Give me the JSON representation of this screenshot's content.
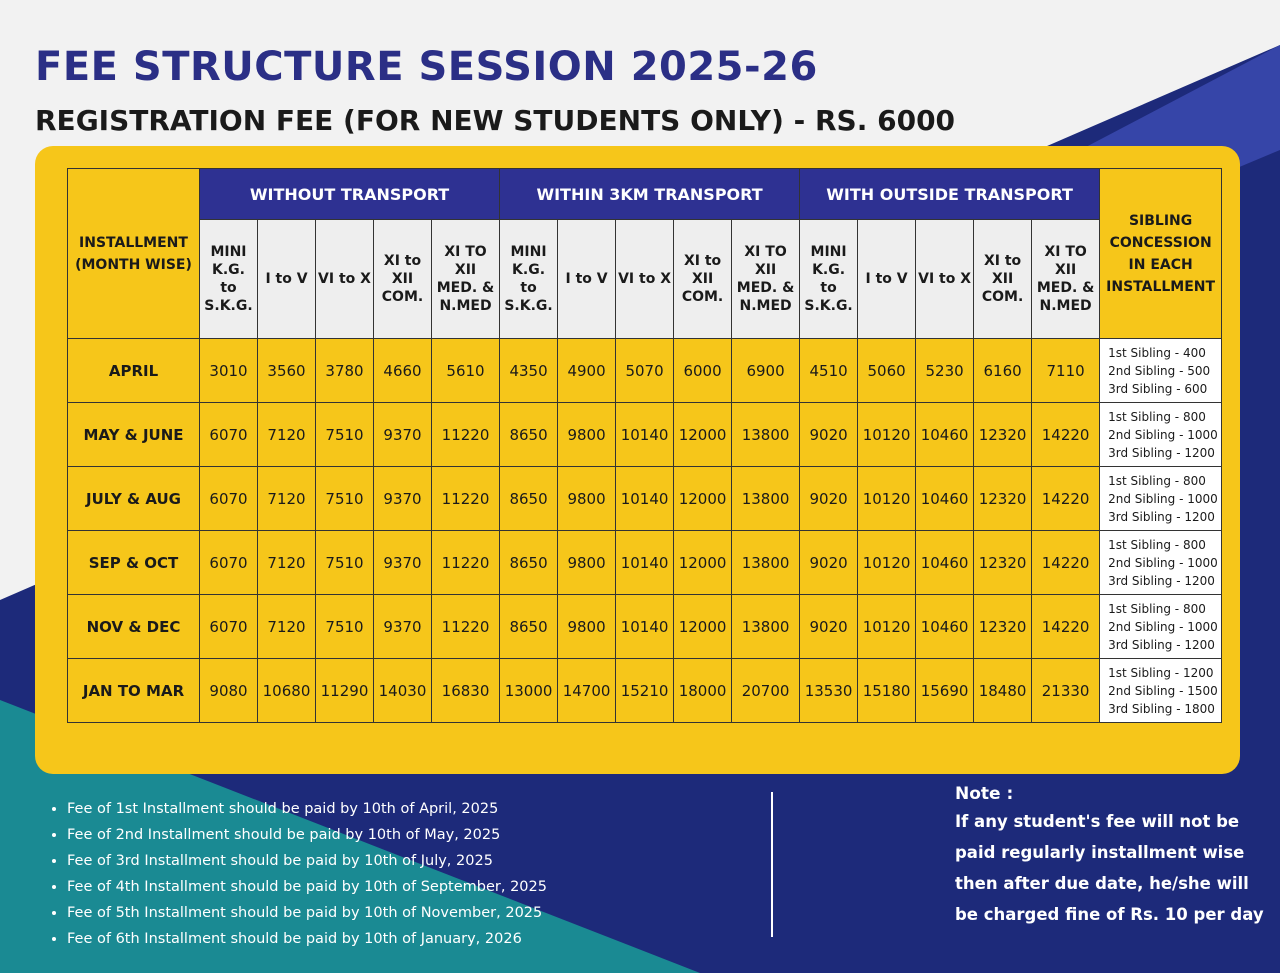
{
  "header": {
    "title": "FEE STRUCTURE SESSION 2025-26",
    "subtitle": "REGISTRATION FEE (FOR NEW STUDENTS ONLY) - RS. 6000"
  },
  "table": {
    "row_header": "INSTALLMENT (MONTH WISE)",
    "groups": [
      {
        "name": "WITHOUT TRANSPORT",
        "columns": [
          "MINI K.G. to S.K.G.",
          "I to V",
          "VI to X",
          "XI to XII COM.",
          "XI TO XII MED. & N.MED"
        ]
      },
      {
        "name": "WITHIN 3KM TRANSPORT",
        "columns": [
          "MINI K.G. to S.K.G.",
          "I to V",
          "VI to X",
          "XI to XII COM.",
          "XI TO XII MED. & N.MED"
        ]
      },
      {
        "name": "WITH OUTSIDE TRANSPORT",
        "columns": [
          "MINI K.G. to S.K.G.",
          "I to V",
          "VI to X",
          "XI to XII COM.",
          "XI TO XII MED. & N.MED"
        ]
      }
    ],
    "concession_header": "SIBLING CONCESSION IN EACH INSTALLMENT",
    "rows": [
      {
        "label": "APRIL",
        "fees": [
          3010,
          3560,
          3780,
          4660,
          5610,
          4350,
          4900,
          5070,
          6000,
          6900,
          4510,
          5060,
          5230,
          6160,
          7110
        ],
        "concession": [
          "1st Sibling - 400",
          "2nd Sibling - 500",
          "3rd Sibling - 600"
        ]
      },
      {
        "label": "MAY & JUNE",
        "fees": [
          6070,
          7120,
          7510,
          9370,
          11220,
          8650,
          9800,
          10140,
          12000,
          13800,
          9020,
          10120,
          10460,
          12320,
          14220
        ],
        "concession": [
          "1st Sibling - 800",
          "2nd Sibling - 1000",
          "3rd Sibling - 1200"
        ]
      },
      {
        "label": "JULY & AUG",
        "fees": [
          6070,
          7120,
          7510,
          9370,
          11220,
          8650,
          9800,
          10140,
          12000,
          13800,
          9020,
          10120,
          10460,
          12320,
          14220
        ],
        "concession": [
          "1st Sibling - 800",
          "2nd Sibling - 1000",
          "3rd Sibling - 1200"
        ]
      },
      {
        "label": "SEP & OCT",
        "fees": [
          6070,
          7120,
          7510,
          9370,
          11220,
          8650,
          9800,
          10140,
          12000,
          13800,
          9020,
          10120,
          10460,
          12320,
          14220
        ],
        "concession": [
          "1st Sibling - 800",
          "2nd Sibling - 1000",
          "3rd Sibling - 1200"
        ]
      },
      {
        "label": "NOV & DEC",
        "fees": [
          6070,
          7120,
          7510,
          9370,
          11220,
          8650,
          9800,
          10140,
          12000,
          13800,
          9020,
          10120,
          10460,
          12320,
          14220
        ],
        "concession": [
          "1st Sibling - 800",
          "2nd Sibling - 1000",
          "3rd Sibling - 1200"
        ]
      },
      {
        "label": "JAN TO MAR",
        "fees": [
          9080,
          10680,
          11290,
          14030,
          16830,
          13000,
          14700,
          15210,
          18000,
          20700,
          13530,
          15180,
          15690,
          18480,
          21330
        ],
        "concession": [
          "1st Sibling - 1200",
          "2nd Sibling - 1500",
          "3rd Sibling - 1800"
        ]
      }
    ]
  },
  "deadlines": [
    "Fee of 1st Installment should be paid by 10th of April, 2025",
    "Fee of 2nd Installment should be paid by 10th of May, 2025",
    "Fee of 3rd Installment should be paid by 10th of July, 2025",
    "Fee of 4th Installment should be paid by 10th of September, 2025",
    "Fee of 5th Installment should be paid by 10th of November, 2025",
    "Fee of 6th Installment should be paid by 10th of January, 2026"
  ],
  "note": {
    "title": "Note :",
    "text": "If any student's fee will not be paid regularly installment wise then after due date, he/she will be charged fine of Rs. 10 per day"
  }
}
